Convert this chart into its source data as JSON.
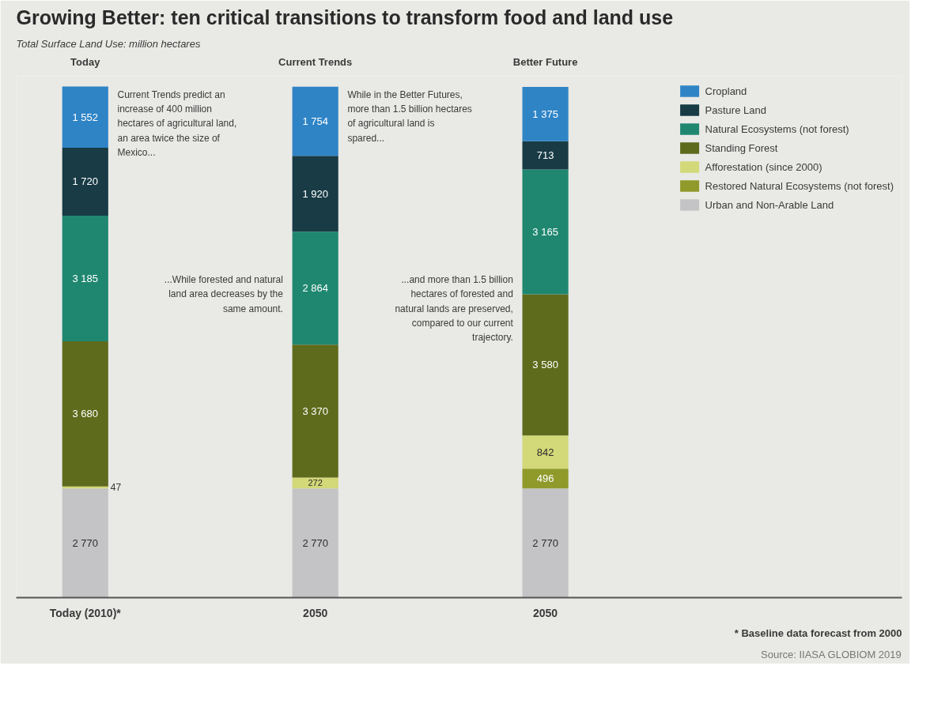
{
  "chart_data": {
    "type": "bar",
    "stacked": true,
    "title": "Growing Better: ten critical transitions to transform food and land use",
    "subtitle": "Total Surface Land Use: million hectares",
    "categories": [
      "Today",
      "Current Trends",
      "Better Future"
    ],
    "series": [
      {
        "name": "Urban and Non-Arable Land",
        "color": "#c4c4c6",
        "values": [
          2770,
          2770,
          2770
        ],
        "value_labels": [
          "2 770",
          "2 770",
          "2 770"
        ]
      },
      {
        "name": "Restored Natural Ecosystems (not forest)",
        "color": "#8f9a2b",
        "values": [
          null,
          null,
          496
        ],
        "value_labels": [
          null,
          null,
          "496"
        ]
      },
      {
        "name": "Afforestation (since 2000)",
        "color": "#d3d878",
        "values": [
          47,
          272,
          842
        ],
        "value_labels": [
          "47",
          "272",
          "842"
        ]
      },
      {
        "name": "Standing Forest",
        "color": "#5f6b1c",
        "values": [
          3680,
          3370,
          3580
        ],
        "value_labels": [
          "3 680",
          "3 370",
          "3 580"
        ]
      },
      {
        "name": "Natural Ecosystems (not forest)",
        "color": "#1f8770",
        "values": [
          3185,
          2864,
          3165
        ],
        "value_labels": [
          "3 185",
          "2 864",
          "3 165"
        ]
      },
      {
        "name": "Pasture Land",
        "color": "#183b45",
        "values": [
          1720,
          1920,
          713
        ],
        "value_labels": [
          "1 720",
          "1 920",
          "713"
        ]
      },
      {
        "name": "Cropland",
        "color": "#2f84c6",
        "values": [
          1552,
          1754,
          1375
        ],
        "value_labels": [
          "1 552",
          "1 754",
          "1 375"
        ]
      }
    ],
    "legend": "top right",
    "annotations": [
      "Today (2010)*",
      "2050",
      "2050",
      "Current Trends predict an increase of 400 million hectares of agricultural land, an area twice the size of Mexico...",
      "...While forested and natural land area decreases by the same amount.",
      "While in the Better Futures, more than 1.5 billion hectares of agricultural land is spared...",
      "...and more than 1.5 billion hectares of forested and natural lands are preserved, compared to our current trajectory.",
      "* Baseline data forecast from 2000",
      "Source: IIASA GLOBIOM 2019"
    ]
  }
}
